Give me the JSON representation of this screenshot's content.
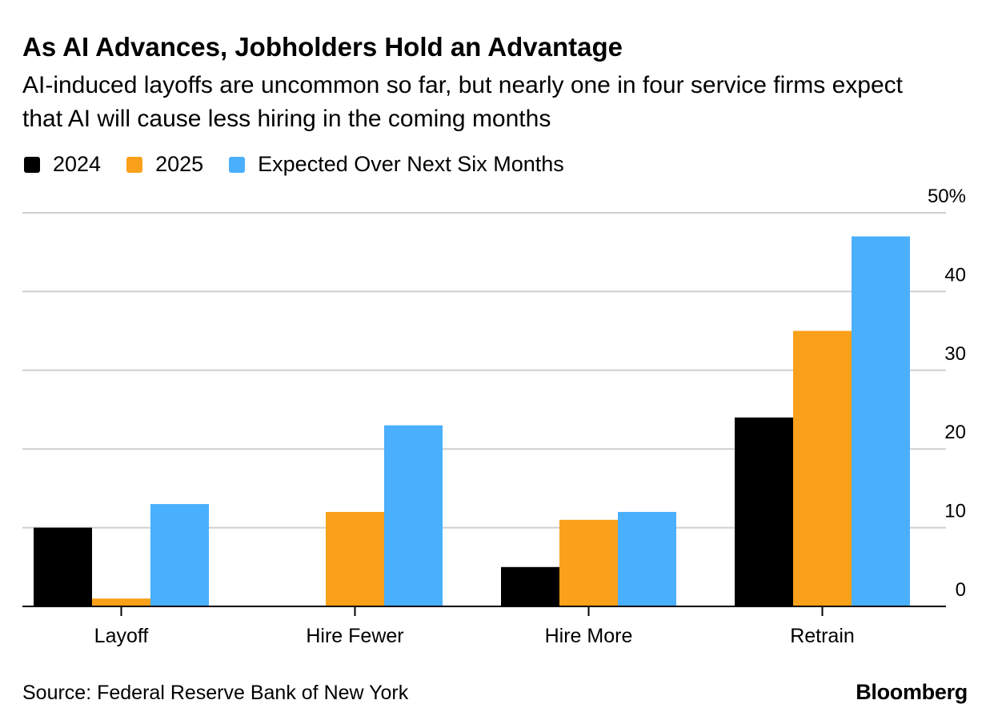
{
  "title": "As AI Advances, Jobholders Hold an Advantage",
  "subtitle": "AI-induced layoffs are uncommon so far, but nearly one in four service firms expect that AI will cause less hiring in the coming months",
  "source": "Source: Federal Reserve Bank of New York",
  "brand": "Bloomberg",
  "chart_data": {
    "type": "bar",
    "categories": [
      "Layoff",
      "Hire Fewer",
      "Hire More",
      "Retrain"
    ],
    "series": [
      {
        "name": "2024",
        "color": "#000000",
        "values": [
          10,
          0,
          5,
          24
        ]
      },
      {
        "name": "2025",
        "color": "#f9a11b",
        "values": [
          1,
          12,
          11,
          35
        ]
      },
      {
        "name": "Expected Over Next Six Months",
        "color": "#4aaffc",
        "values": [
          13,
          23,
          12,
          47
        ]
      }
    ],
    "ylim": [
      0,
      50
    ],
    "yticks": [
      "0",
      "10",
      "20",
      "30",
      "40",
      "50%"
    ],
    "y_axis_side": "right",
    "grid": true,
    "legend_position": "top-left"
  }
}
